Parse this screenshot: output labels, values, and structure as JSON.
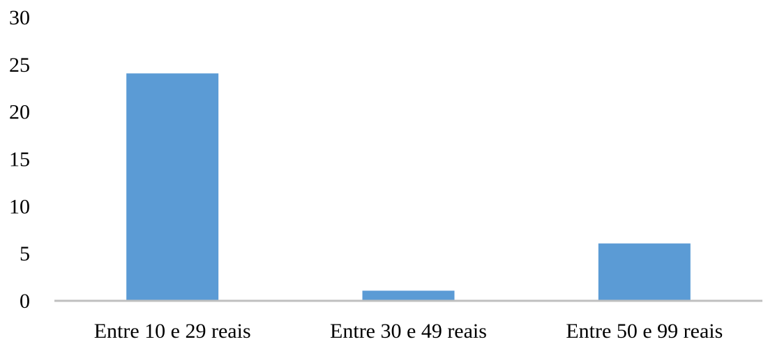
{
  "chart_data": {
    "type": "bar",
    "title": "",
    "xlabel": "",
    "ylabel": "",
    "categories": [
      "Entre 10 e 29 reais",
      "Entre 30 e 49 reais",
      "Entre 50 e 99 reais"
    ],
    "values": [
      24,
      1,
      6
    ],
    "ylim": [
      0,
      30
    ],
    "yticks": [
      0,
      5,
      10,
      15,
      20,
      25,
      30
    ],
    "grid": false,
    "legend": "none",
    "colors": {
      "bar": "#5b9bd5",
      "axis": "#bfbfbf",
      "text": "#000000"
    }
  }
}
